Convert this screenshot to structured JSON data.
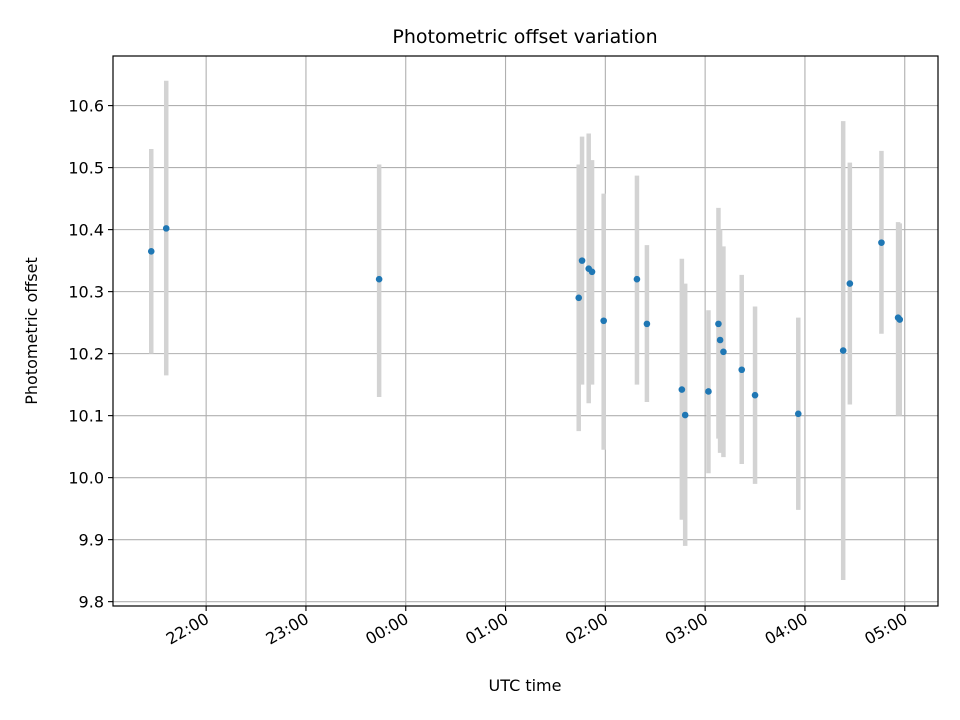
{
  "chart_data": {
    "type": "scatter",
    "title": "Photometric offset variation",
    "xlabel": "UTC time",
    "ylabel": "Photometric offset",
    "x_axis_type": "time",
    "xlim": [
      "21:04",
      "05:20"
    ],
    "ylim": [
      9.793,
      10.68
    ],
    "grid": true,
    "x_ticks": [
      "22:00",
      "23:00",
      "00:00",
      "01:00",
      "02:00",
      "03:00",
      "04:00",
      "05:00"
    ],
    "y_ticks": [
      "9.8",
      "9.9",
      "10.0",
      "10.1",
      "10.2",
      "10.3",
      "10.4",
      "10.5",
      "10.6"
    ],
    "colors": {
      "points": "#1f77b4",
      "error_bars": "#d3d3d3",
      "grid": "#b0b0b0"
    },
    "points": [
      {
        "x": "21:27",
        "y": 10.365,
        "ylo": 10.2,
        "yhi": 10.53
      },
      {
        "x": "21:36",
        "y": 10.402,
        "ylo": 10.165,
        "yhi": 10.64
      },
      {
        "x": "23:44",
        "y": 10.32,
        "ylo": 10.13,
        "yhi": 10.505
      },
      {
        "x": "01:44",
        "y": 10.29,
        "ylo": 10.075,
        "yhi": 10.505
      },
      {
        "x": "01:46",
        "y": 10.35,
        "ylo": 10.15,
        "yhi": 10.55
      },
      {
        "x": "01:50",
        "y": 10.337,
        "ylo": 10.12,
        "yhi": 10.555
      },
      {
        "x": "01:52",
        "y": 10.332,
        "ylo": 10.15,
        "yhi": 10.512
      },
      {
        "x": "01:59",
        "y": 10.253,
        "ylo": 10.045,
        "yhi": 10.458
      },
      {
        "x": "02:19",
        "y": 10.32,
        "ylo": 10.15,
        "yhi": 10.487
      },
      {
        "x": "02:25",
        "y": 10.248,
        "ylo": 10.122,
        "yhi": 10.375
      },
      {
        "x": "02:46",
        "y": 10.142,
        "ylo": 9.932,
        "yhi": 10.353
      },
      {
        "x": "02:48",
        "y": 10.101,
        "ylo": 9.89,
        "yhi": 10.313
      },
      {
        "x": "03:02",
        "y": 10.139,
        "ylo": 10.007,
        "yhi": 10.27
      },
      {
        "x": "03:08",
        "y": 10.248,
        "ylo": 10.063,
        "yhi": 10.435
      },
      {
        "x": "03:09",
        "y": 10.222,
        "ylo": 10.04,
        "yhi": 10.4
      },
      {
        "x": "03:11",
        "y": 10.203,
        "ylo": 10.033,
        "yhi": 10.373
      },
      {
        "x": "03:22",
        "y": 10.174,
        "ylo": 10.022,
        "yhi": 10.327
      },
      {
        "x": "03:30",
        "y": 10.133,
        "ylo": 9.99,
        "yhi": 10.276
      },
      {
        "x": "03:56",
        "y": 10.103,
        "ylo": 9.948,
        "yhi": 10.258
      },
      {
        "x": "04:23",
        "y": 10.205,
        "ylo": 9.835,
        "yhi": 10.575
      },
      {
        "x": "04:27",
        "y": 10.313,
        "ylo": 10.118,
        "yhi": 10.508
      },
      {
        "x": "04:46",
        "y": 10.379,
        "ylo": 10.232,
        "yhi": 10.527
      },
      {
        "x": "04:56",
        "y": 10.258,
        "ylo": 10.1,
        "yhi": 10.412
      },
      {
        "x": "04:57",
        "y": 10.255,
        "ylo": 10.1,
        "yhi": 10.41
      }
    ]
  }
}
